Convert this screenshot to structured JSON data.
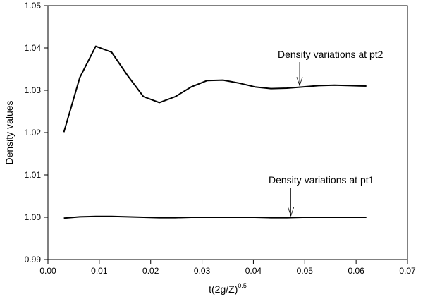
{
  "chart_data": {
    "type": "line",
    "title": "",
    "xlabel": "t(2g/Z)",
    "xlabel_superscript": "0.5",
    "ylabel": "Density values",
    "xlim": [
      0.0,
      0.07
    ],
    "ylim": [
      0.99,
      1.05
    ],
    "x_ticks": [
      0.0,
      0.01,
      0.02,
      0.03,
      0.04,
      0.05,
      0.06,
      0.07
    ],
    "x_tick_labels": [
      "0.00",
      "0.01",
      "0.02",
      "0.03",
      "0.04",
      "0.05",
      "0.06",
      "0.07"
    ],
    "y_ticks": [
      0.99,
      1.0,
      1.01,
      1.02,
      1.03,
      1.04,
      1.05
    ],
    "y_tick_labels": [
      "0.99",
      "1.00",
      "1.01",
      "1.02",
      "1.03",
      "1.04",
      "1.05"
    ],
    "grid": false,
    "color": "#000000",
    "series": [
      {
        "name": "pt2",
        "x": [
          0.0031,
          0.0062,
          0.0093,
          0.0124,
          0.0155,
          0.0186,
          0.0217,
          0.0248,
          0.0279,
          0.031,
          0.0341,
          0.0372,
          0.0403,
          0.0434,
          0.0465,
          0.0496,
          0.0527,
          0.0558,
          0.0589,
          0.062
        ],
        "values": [
          1.0201,
          1.033,
          1.0404,
          1.039,
          1.0335,
          1.0285,
          1.0271,
          1.0285,
          1.0308,
          1.0323,
          1.0324,
          1.0317,
          1.0308,
          1.0304,
          1.0305,
          1.0308,
          1.0311,
          1.0312,
          1.0311,
          1.031
        ]
      },
      {
        "name": "pt1",
        "x": [
          0.0031,
          0.0062,
          0.0093,
          0.0124,
          0.0155,
          0.0186,
          0.0217,
          0.0248,
          0.0279,
          0.031,
          0.0341,
          0.0372,
          0.0403,
          0.0434,
          0.0465,
          0.0496,
          0.0527,
          0.0558,
          0.0589,
          0.062
        ],
        "values": [
          0.9998,
          1.0001,
          1.0002,
          1.0002,
          1.0001,
          1.0,
          0.9999,
          0.9999,
          1.0,
          1.0,
          1.0,
          1.0,
          1.0,
          0.9999,
          0.9999,
          1.0,
          1.0,
          1.0,
          1.0,
          1.0
        ]
      }
    ],
    "annotations": [
      {
        "text": "Density variations at pt2",
        "arrow_to": [
          0.049,
          1.0308
        ]
      },
      {
        "text": "Density variations at pt1",
        "arrow_to": [
          0.0473,
          1.0
        ]
      }
    ]
  }
}
